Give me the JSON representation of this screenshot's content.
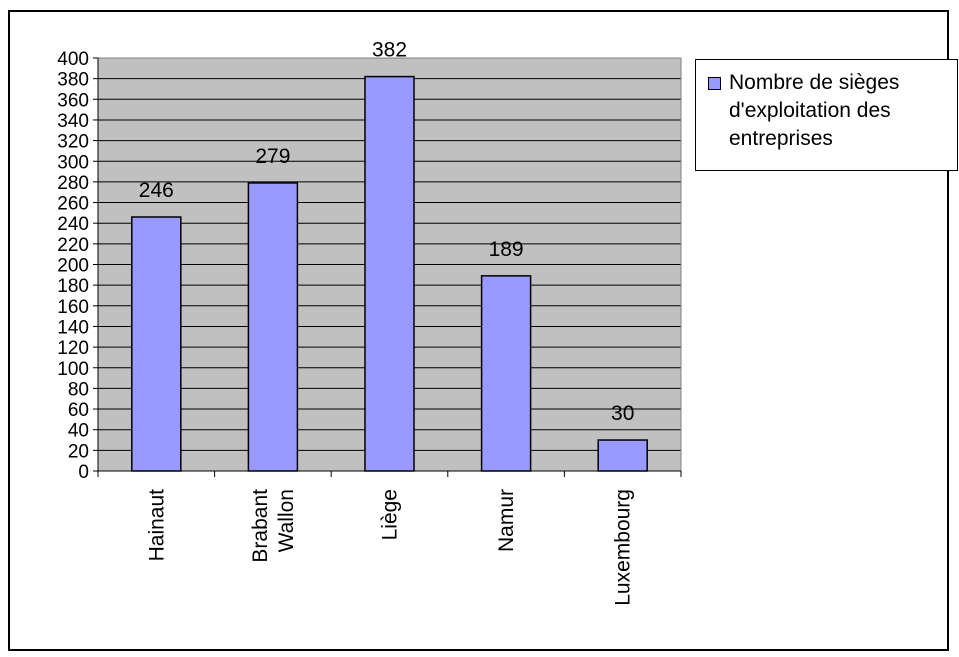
{
  "chart_data": {
    "type": "bar",
    "categories": [
      "Hainaut",
      "Brabant Wallon",
      "Liège",
      "Namur",
      "Luxembourg"
    ],
    "category_lines": [
      [
        "Hainaut"
      ],
      [
        "Brabant",
        "Wallon"
      ],
      [
        "Liège"
      ],
      [
        "Namur"
      ],
      [
        "Luxembourg"
      ]
    ],
    "series": [
      {
        "name": "Nombre de sièges d'exploitation des entreprises",
        "values": [
          246,
          279,
          382,
          189,
          30
        ],
        "color": "#9999ff"
      }
    ],
    "data_labels": [
      "246",
      "279",
      "382",
      "189",
      "30"
    ],
    "ylim": [
      0,
      400
    ],
    "ytick_step": 20,
    "yticks": [
      "0",
      "20",
      "40",
      "60",
      "80",
      "100",
      "120",
      "140",
      "160",
      "180",
      "200",
      "220",
      "240",
      "260",
      "280",
      "300",
      "320",
      "340",
      "360",
      "380",
      "400"
    ],
    "xlabel": "",
    "ylabel": "",
    "grid": true,
    "legend_position": "right",
    "plot_background": "#c0c0c0",
    "gridline_color": "#000000",
    "bar_border_color": "#000000"
  }
}
